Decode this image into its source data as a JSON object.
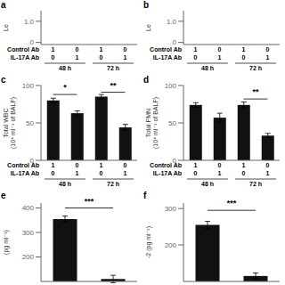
{
  "chart_data": [
    {
      "type": "bar",
      "title": "a",
      "y_label": "Le",
      "categories": [
        null,
        null,
        null,
        null
      ],
      "values": [
        null,
        null,
        null,
        null
      ],
      "ylim": [
        -0.1,
        1.5
      ],
      "yticks": [
        0,
        {
          "value": 1,
          "label": "1.0"
        }
      ],
      "table": {
        "rows": [
          {
            "name": "Control Ab",
            "values": [
              1,
              0,
              1,
              0
            ]
          },
          {
            "name": "IL-17A Ab",
            "values": [
              0,
              1,
              0,
              1
            ]
          }
        ],
        "groups": [
          "48 h",
          "72 h"
        ]
      }
    },
    {
      "type": "bar",
      "title": "b",
      "y_label": "Le",
      "categories": [
        null,
        null,
        null,
        null
      ],
      "values": [
        null,
        null,
        null,
        null
      ],
      "ylim": [
        -0.1,
        1.5
      ],
      "yticks": [
        0,
        {
          "value": 1,
          "label": "1.0"
        }
      ],
      "table": {
        "rows": [
          {
            "name": "Control Ab",
            "values": [
              1,
              0,
              1,
              0
            ]
          },
          {
            "name": "IL-17A Ab",
            "values": [
              0,
              1,
              0,
              1
            ]
          }
        ],
        "groups": [
          "48 h",
          "72 h"
        ]
      }
    },
    {
      "type": "bar",
      "title": "c",
      "y_label": "Total WBC\n(10⁴ ml⁻¹ of BALF)",
      "categories": [
        null,
        null,
        null,
        null
      ],
      "values": [
        80,
        63,
        85,
        44
      ],
      "errors": [
        3,
        3,
        3,
        4
      ],
      "color": "#111111",
      "ylim": [
        0,
        100
      ],
      "yticks": [
        0,
        50,
        100
      ],
      "annotations": [
        {
          "text": "*",
          "between": [
            0,
            1
          ],
          "y": 88
        },
        {
          "text": "**",
          "between": [
            2,
            3
          ],
          "y": 91
        }
      ],
      "table": {
        "rows": [
          {
            "name": "Control Ab",
            "values": [
              1,
              0,
              1,
              0
            ]
          },
          {
            "name": "IL-17A Ab",
            "values": [
              0,
              1,
              0,
              1
            ]
          }
        ],
        "groups": [
          "48 h",
          "72 h"
        ]
      }
    },
    {
      "type": "bar",
      "title": "d",
      "y_label": "Total PMN\n(10⁴ ml⁻¹ of BALF)",
      "categories": [
        null,
        null,
        null,
        null
      ],
      "values": [
        74,
        57,
        74,
        33
      ],
      "errors": [
        3,
        6,
        4,
        3
      ],
      "color": "#111111",
      "ylim": [
        0,
        100
      ],
      "yticks": [
        0,
        50,
        100
      ],
      "annotations": [
        {
          "text": "**",
          "between": [
            2,
            3
          ],
          "y": 82
        }
      ],
      "table": {
        "rows": [
          {
            "name": "Control Ab",
            "values": [
              1,
              0,
              1,
              0
            ]
          },
          {
            "name": "IL-17A Ab",
            "values": [
              0,
              1,
              0,
              1
            ]
          }
        ],
        "groups": [
          "48 h",
          "72 h"
        ]
      }
    },
    {
      "type": "bar",
      "title": "e",
      "y_label": "(pg ml⁻¹)",
      "categories": [
        null,
        null
      ],
      "values": [
        355,
        110
      ],
      "errors": [
        12,
        15
      ],
      "color": "#111111",
      "ylim": [
        100,
        420
      ],
      "yticks": [
        100,
        200,
        300,
        400
      ],
      "annotations": [
        {
          "text": "***",
          "between": [
            0,
            1
          ],
          "y": 400
        }
      ]
    },
    {
      "type": "bar",
      "title": "f",
      "y_label": "-2 (pg ml⁻¹)",
      "categories": [
        null,
        null
      ],
      "values": [
        255,
        115
      ],
      "errors": [
        10,
        8
      ],
      "color": "#111111",
      "ylim": [
        100,
        315
      ],
      "yticks": [
        100,
        200,
        300
      ],
      "annotations": [
        {
          "text": "***",
          "between": [
            0,
            1
          ],
          "y": 295
        }
      ]
    }
  ]
}
